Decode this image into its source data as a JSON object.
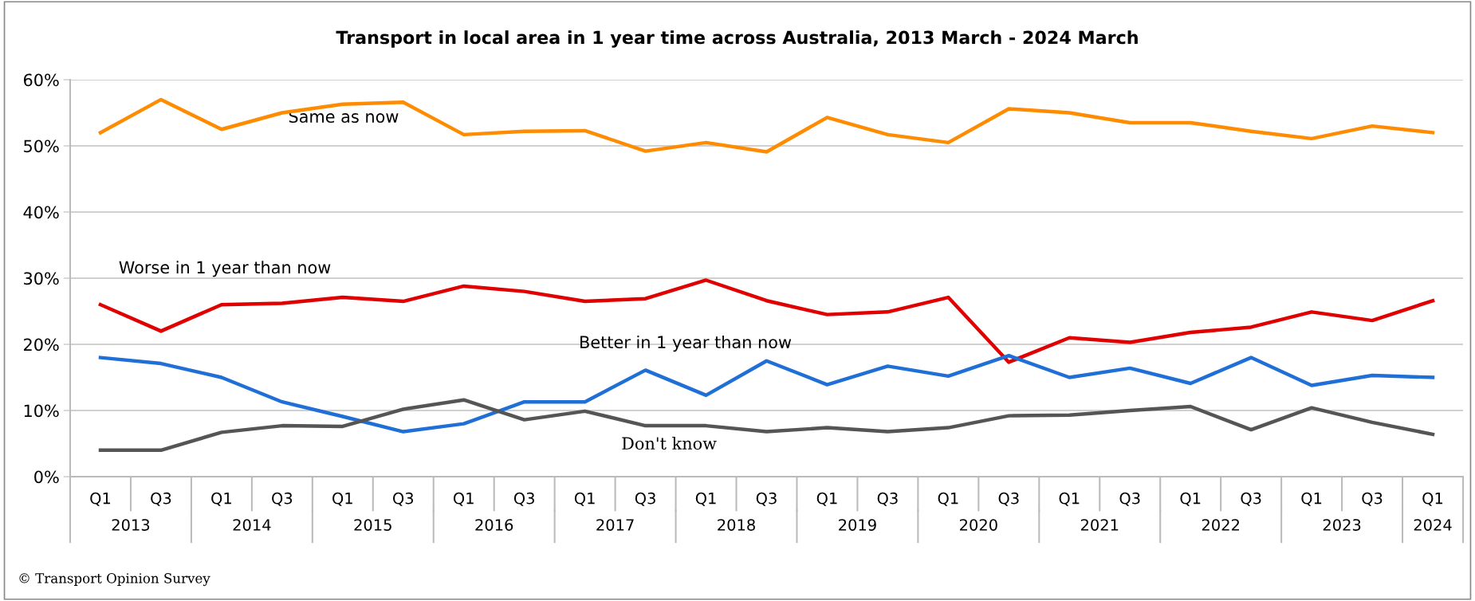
{
  "chart_data": {
    "type": "line",
    "title": "Transport in local area in 1 year time across Australia, 2013 March - 2024 March",
    "categories": [
      "Q1",
      "Q3",
      "Q1",
      "Q3",
      "Q1",
      "Q3",
      "Q1",
      "Q3",
      "Q1",
      "Q3",
      "Q1",
      "Q3",
      "Q1",
      "Q3",
      "Q1",
      "Q3",
      "Q1",
      "Q3",
      "Q1",
      "Q3",
      "Q1",
      "Q3",
      "Q1"
    ],
    "series": [
      {
        "name": "Same as now",
        "color": "#ff8c00",
        "values": [
          52,
          57,
          52.5,
          55,
          56.3,
          56.6,
          51.7,
          52.2,
          52.3,
          49.2,
          50.5,
          49.1,
          54.3,
          51.7,
          50.5,
          55.6,
          55,
          53.5,
          53.5,
          52.2,
          51.1,
          53,
          52
        ]
      },
      {
        "name": "Worse in 1 year than now",
        "color": "#e00000",
        "values": [
          26,
          22,
          26,
          26.2,
          27.1,
          26.5,
          28.8,
          28,
          26.5,
          26.9,
          29.7,
          26.6,
          24.5,
          24.9,
          27.1,
          17.3,
          21,
          20.3,
          21.8,
          22.6,
          24.9,
          23.6,
          26.6
        ]
      },
      {
        "name": "Better in 1 year than now",
        "color": "#1f6fd6",
        "values": [
          18,
          17.1,
          15,
          11.3,
          9.1,
          6.8,
          8,
          11.3,
          11.3,
          16.1,
          12.3,
          17.5,
          13.9,
          16.7,
          15.2,
          18.3,
          15,
          16.4,
          14.1,
          18,
          13.8,
          15.3,
          15
        ]
      },
      {
        "name": "Don't know",
        "color": "#555555",
        "values": [
          4,
          4,
          6.7,
          7.7,
          7.6,
          10.2,
          11.6,
          8.6,
          9.9,
          7.7,
          7.7,
          6.8,
          7.4,
          6.8,
          7.4,
          9.2,
          9.3,
          10,
          10.6,
          7.1,
          10.4,
          8.2,
          6.4
        ]
      }
    ],
    "ylim": [
      0,
      60
    ],
    "yticks": [
      {
        "value": 0,
        "label": "0%"
      },
      {
        "value": 10,
        "label": "10%"
      },
      {
        "value": 20,
        "label": "20%"
      },
      {
        "value": 30,
        "label": "30%"
      },
      {
        "value": 40,
        "label": "40%"
      },
      {
        "value": 50,
        "label": "50%"
      },
      {
        "value": 60,
        "label": "60%"
      }
    ],
    "grid": "y",
    "legend": false,
    "marker": "none",
    "line_style": "solid",
    "annotations": [
      "2013",
      "2014",
      "2015",
      "2016",
      "2017",
      "2018",
      "2019",
      "2020",
      "2021",
      "2022",
      "2023",
      "2024",
      "© Transport Opinion Survey"
    ]
  }
}
